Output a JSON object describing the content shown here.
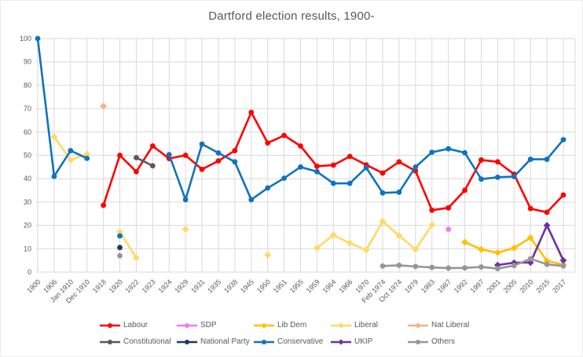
{
  "chart_data": {
    "type": "line",
    "title": "Dartford election results, 1900-",
    "xlabel": "",
    "ylabel": "",
    "ylim": [
      0,
      100
    ],
    "y_ticks": [
      0,
      10,
      20,
      30,
      40,
      50,
      60,
      70,
      80,
      90,
      100
    ],
    "grid": true,
    "legend_position": "bottom",
    "categories": [
      "1900",
      "1906",
      "Jan 1910",
      "Dec 1910",
      "1918",
      "1920",
      "1922",
      "1923",
      "1924",
      "1929",
      "1931",
      "1935",
      "1938",
      "1945",
      "1950",
      "1951",
      "1955",
      "1959",
      "1964",
      "1966",
      "1970",
      "Feb 1974",
      "Oct 1974",
      "1979",
      "1983",
      "1987",
      "1992",
      "1997",
      "2001",
      "2005",
      "2010",
      "2015",
      "2017"
    ],
    "series": [
      {
        "name": "Labour",
        "color": "#FF0000",
        "marker": "circle",
        "values": [
          null,
          null,
          null,
          null,
          28.6,
          50,
          43,
          54,
          48.6,
          50,
          44,
          47.6,
          52,
          68.4,
          55.3,
          58.5,
          54,
          45.3,
          45.8,
          49.5,
          45.9,
          42.4,
          47.2,
          43.3,
          26.5,
          27.5,
          35,
          48,
          47.2,
          41.9,
          27.2,
          25.6,
          33
        ]
      },
      {
        "name": "SDP",
        "color": "#EF7BEF",
        "marker": "circle",
        "values": [
          null,
          null,
          null,
          null,
          null,
          null,
          null,
          null,
          null,
          null,
          null,
          null,
          null,
          null,
          null,
          null,
          null,
          null,
          null,
          null,
          null,
          null,
          null,
          null,
          null,
          18.3,
          null,
          null,
          null,
          null,
          null,
          null,
          null
        ]
      },
      {
        "name": "Lib Dem",
        "color": "#FFC000",
        "marker": "diamond",
        "values": [
          null,
          null,
          null,
          null,
          null,
          null,
          null,
          null,
          null,
          null,
          null,
          null,
          null,
          null,
          null,
          null,
          null,
          null,
          null,
          null,
          null,
          null,
          null,
          null,
          null,
          null,
          12.8,
          9.7,
          8.3,
          10.3,
          14.7,
          4.8,
          3.2
        ]
      },
      {
        "name": "Liberal",
        "color": "#FFD966",
        "marker": "diamond",
        "values": [
          null,
          58,
          48,
          50.5,
          null,
          17.2,
          6.1,
          null,
          null,
          18.3,
          null,
          null,
          null,
          null,
          7.3,
          null,
          null,
          10.3,
          15.8,
          12.4,
          9.4,
          21.7,
          15.6,
          9.7,
          20.2,
          null,
          null,
          null,
          null,
          null,
          null,
          null,
          null
        ]
      },
      {
        "name": "Nat Liberal",
        "color": "#F4B183",
        "marker": "diamond",
        "values": [
          null,
          null,
          null,
          null,
          71,
          null,
          null,
          null,
          null,
          null,
          null,
          null,
          null,
          null,
          null,
          null,
          null,
          null,
          null,
          null,
          null,
          null,
          null,
          null,
          null,
          null,
          null,
          null,
          null,
          null,
          null,
          null,
          null
        ]
      },
      {
        "name": "Constitutional",
        "color": "#595959",
        "marker": "circle",
        "values": [
          null,
          null,
          null,
          null,
          null,
          null,
          49,
          45.5,
          null,
          null,
          null,
          null,
          null,
          null,
          null,
          null,
          null,
          null,
          null,
          null,
          null,
          null,
          null,
          null,
          null,
          null,
          null,
          null,
          null,
          null,
          null,
          null,
          null
        ]
      },
      {
        "name": "National Party",
        "color": "#1F3864",
        "marker": "circle",
        "values": [
          null,
          null,
          null,
          null,
          null,
          10.5,
          null,
          null,
          null,
          null,
          null,
          null,
          null,
          null,
          null,
          null,
          null,
          null,
          null,
          null,
          null,
          null,
          null,
          null,
          null,
          null,
          null,
          null,
          null,
          null,
          null,
          null,
          null
        ]
      },
      {
        "name": "Conservative",
        "color": "#0F74BE",
        "marker": "circle",
        "values": [
          100,
          41,
          52,
          48.7,
          null,
          15.5,
          null,
          null,
          50.3,
          31,
          54.8,
          51,
          47.2,
          31,
          36,
          40.2,
          45,
          43,
          38,
          38,
          44.7,
          33.9,
          34.2,
          45,
          51.3,
          52.8,
          51.1,
          39.8,
          40.6,
          40.9,
          48.3,
          48.3,
          56.7
        ]
      },
      {
        "name": "UKIP",
        "color": "#7030A0",
        "marker": "diamond",
        "values": [
          null,
          null,
          null,
          null,
          null,
          null,
          null,
          null,
          null,
          null,
          null,
          null,
          null,
          null,
          null,
          null,
          null,
          null,
          null,
          null,
          null,
          null,
          null,
          null,
          null,
          null,
          null,
          null,
          3,
          4,
          4.1,
          20,
          5
        ]
      },
      {
        "name": "Others",
        "color": "#969696",
        "marker": "circle",
        "values": [
          null,
          null,
          null,
          null,
          null,
          7,
          null,
          null,
          null,
          null,
          null,
          null,
          null,
          null,
          null,
          null,
          null,
          null,
          null,
          null,
          null,
          2.6,
          2.9,
          2.4,
          2,
          1.7,
          1.8,
          2.2,
          1.5,
          2.8,
          5.7,
          3.3,
          2.6
        ]
      }
    ],
    "legend_rows": [
      [
        "Labour",
        "SDP",
        "Lib Dem",
        "Liberal",
        "Nat Liberal"
      ],
      [
        "Constitutional",
        "National Party",
        "Conservative",
        "UKIP",
        "Others"
      ]
    ]
  },
  "style_colors": {
    "grid": "#D9D9D9",
    "axis_text": "#595959",
    "title_text": "#595959",
    "background": "#FFFFFF"
  }
}
